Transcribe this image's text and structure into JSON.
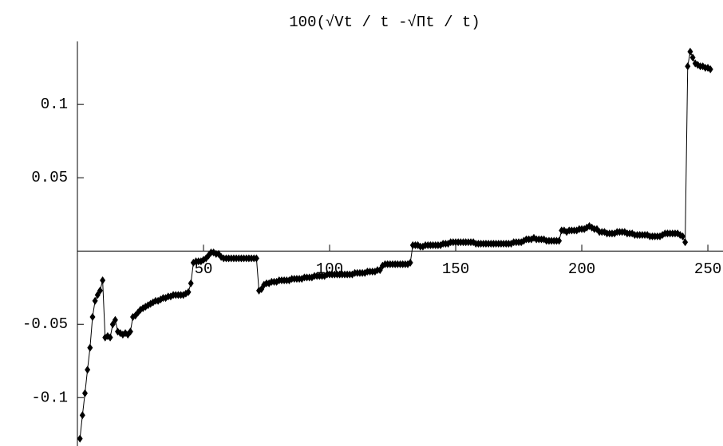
{
  "chart_data": {
    "type": "scatter-line",
    "title": "100(√Vt / t -√Πt / t)",
    "color": "#000000",
    "xlim": [
      0,
      256
    ],
    "ylim": [
      -0.133,
      0.143
    ],
    "xticks": [
      50,
      100,
      150,
      200,
      250
    ],
    "yticks": [
      -0.1,
      -0.05,
      0.05,
      0.1
    ],
    "x": [
      1,
      2,
      3,
      4,
      5,
      6,
      7,
      8,
      9,
      10,
      11,
      12,
      13,
      14,
      15,
      16,
      17,
      18,
      19,
      20,
      21,
      22,
      23,
      24,
      25,
      26,
      27,
      28,
      29,
      30,
      31,
      32,
      33,
      34,
      35,
      36,
      37,
      38,
      39,
      40,
      41,
      42,
      43,
      44,
      45,
      46,
      47,
      48,
      49,
      50,
      51,
      52,
      53,
      54,
      55,
      56,
      57,
      58,
      59,
      60,
      61,
      62,
      63,
      64,
      65,
      66,
      67,
      68,
      69,
      70,
      71,
      72,
      73,
      74,
      75,
      76,
      77,
      78,
      79,
      80,
      81,
      82,
      83,
      84,
      85,
      86,
      87,
      88,
      89,
      90,
      91,
      92,
      93,
      94,
      95,
      96,
      97,
      98,
      99,
      100,
      101,
      102,
      103,
      104,
      105,
      106,
      107,
      108,
      109,
      110,
      111,
      112,
      113,
      114,
      115,
      116,
      117,
      118,
      119,
      120,
      121,
      122,
      123,
      124,
      125,
      126,
      127,
      128,
      129,
      130,
      131,
      132,
      133,
      134,
      135,
      136,
      137,
      138,
      139,
      140,
      141,
      142,
      143,
      144,
      145,
      146,
      147,
      148,
      149,
      150,
      151,
      152,
      153,
      154,
      155,
      156,
      157,
      158,
      159,
      160,
      161,
      162,
      163,
      164,
      165,
      166,
      167,
      168,
      169,
      170,
      171,
      172,
      173,
      174,
      175,
      176,
      177,
      178,
      179,
      180,
      181,
      182,
      183,
      184,
      185,
      186,
      187,
      188,
      189,
      190,
      191,
      192,
      193,
      194,
      195,
      196,
      197,
      198,
      199,
      200,
      201,
      202,
      203,
      204,
      205,
      206,
      207,
      208,
      209,
      210,
      211,
      212,
      213,
      214,
      215,
      216,
      217,
      218,
      219,
      220,
      221,
      222,
      223,
      224,
      225,
      226,
      227,
      228,
      229,
      230,
      231,
      232,
      233,
      234,
      235,
      236,
      237,
      238,
      239,
      240,
      241,
      242,
      243,
      244,
      245,
      246,
      247,
      248,
      249,
      250,
      251
    ],
    "values": [
      -0.128,
      -0.112,
      -0.097,
      -0.081,
      -0.066,
      -0.045,
      -0.034,
      -0.03,
      -0.027,
      -0.02,
      -0.059,
      -0.058,
      -0.059,
      -0.05,
      -0.047,
      -0.055,
      -0.056,
      -0.057,
      -0.056,
      -0.057,
      -0.055,
      -0.045,
      -0.044,
      -0.042,
      -0.04,
      -0.039,
      -0.038,
      -0.037,
      -0.036,
      -0.035,
      -0.034,
      -0.034,
      -0.033,
      -0.032,
      -0.032,
      -0.031,
      -0.031,
      -0.03,
      -0.03,
      -0.03,
      -0.03,
      -0.03,
      -0.029,
      -0.028,
      -0.022,
      -0.008,
      -0.007,
      -0.007,
      -0.007,
      -0.006,
      -0.005,
      -0.003,
      -0.001,
      -0.001,
      -0.002,
      -0.002,
      -0.004,
      -0.005,
      -0.005,
      -0.005,
      -0.005,
      -0.005,
      -0.005,
      -0.005,
      -0.005,
      -0.005,
      -0.005,
      -0.005,
      -0.005,
      -0.005,
      -0.005,
      -0.027,
      -0.026,
      -0.023,
      -0.022,
      -0.022,
      -0.021,
      -0.021,
      -0.021,
      -0.02,
      -0.02,
      -0.02,
      -0.02,
      -0.02,
      -0.019,
      -0.019,
      -0.019,
      -0.019,
      -0.019,
      -0.018,
      -0.018,
      -0.018,
      -0.018,
      -0.017,
      -0.017,
      -0.017,
      -0.017,
      -0.017,
      -0.016,
      -0.016,
      -0.016,
      -0.016,
      -0.016,
      -0.016,
      -0.016,
      -0.016,
      -0.016,
      -0.016,
      -0.016,
      -0.015,
      -0.015,
      -0.015,
      -0.015,
      -0.015,
      -0.014,
      -0.014,
      -0.014,
      -0.014,
      -0.013,
      -0.013,
      -0.01,
      -0.009,
      -0.009,
      -0.009,
      -0.009,
      -0.009,
      -0.009,
      -0.009,
      -0.009,
      -0.009,
      -0.009,
      -0.008,
      0.004,
      0.004,
      0.004,
      0.003,
      0.003,
      0.004,
      0.004,
      0.004,
      0.004,
      0.004,
      0.004,
      0.004,
      0.005,
      0.005,
      0.005,
      0.006,
      0.006,
      0.006,
      0.006,
      0.006,
      0.006,
      0.006,
      0.006,
      0.006,
      0.006,
      0.005,
      0.005,
      0.005,
      0.005,
      0.005,
      0.005,
      0.005,
      0.005,
      0.005,
      0.005,
      0.005,
      0.005,
      0.005,
      0.005,
      0.005,
      0.006,
      0.006,
      0.006,
      0.006,
      0.007,
      0.008,
      0.008,
      0.008,
      0.009,
      0.008,
      0.008,
      0.008,
      0.008,
      0.007,
      0.007,
      0.007,
      0.007,
      0.007,
      0.007,
      0.014,
      0.014,
      0.013,
      0.014,
      0.014,
      0.014,
      0.014,
      0.015,
      0.015,
      0.015,
      0.016,
      0.017,
      0.016,
      0.015,
      0.015,
      0.013,
      0.013,
      0.013,
      0.012,
      0.012,
      0.012,
      0.012,
      0.013,
      0.013,
      0.013,
      0.013,
      0.012,
      0.012,
      0.012,
      0.011,
      0.011,
      0.011,
      0.011,
      0.011,
      0.011,
      0.01,
      0.01,
      0.01,
      0.01,
      0.01,
      0.011,
      0.012,
      0.012,
      0.012,
      0.012,
      0.012,
      0.012,
      0.011,
      0.01,
      0.006,
      0.126,
      0.136,
      0.132,
      0.128,
      0.127,
      0.126,
      0.126,
      0.125,
      0.125,
      0.124
    ]
  }
}
